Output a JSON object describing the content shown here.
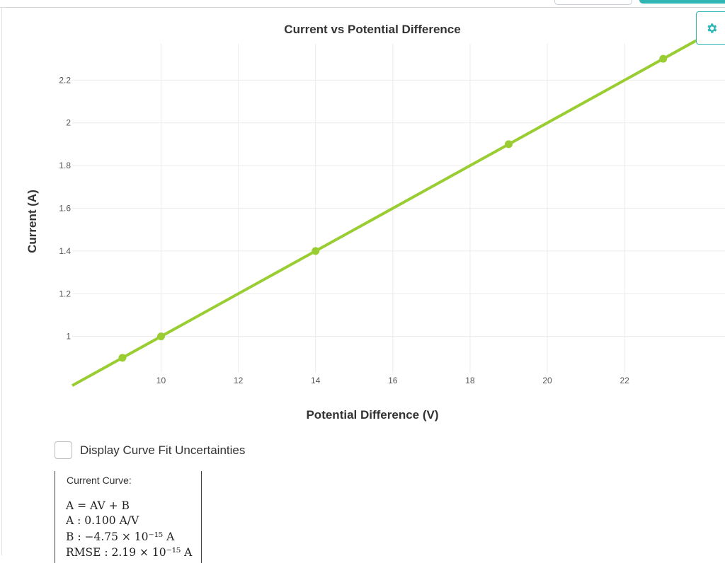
{
  "header": {
    "gear_icon": "gear-icon"
  },
  "chart_data": {
    "type": "line",
    "title": "Current vs Potential Difference",
    "xlabel": "Potential Difference (V)",
    "ylabel": "Current (A)",
    "xlim": [
      7.7,
      24.6
    ],
    "ylim": [
      0.83,
      2.37
    ],
    "x_ticks": [
      10,
      12,
      14,
      16,
      18,
      20,
      22
    ],
    "y_ticks": [
      1,
      1.2,
      1.4,
      1.6,
      1.8,
      2,
      2.2
    ],
    "x_tick_labels": [
      "10",
      "12",
      "14",
      "16",
      "18",
      "20",
      "22"
    ],
    "y_tick_labels": [
      "1",
      "1.2",
      "1.4",
      "1.6",
      "1.8",
      "2",
      "2.2"
    ],
    "grid": true,
    "series": [
      {
        "points": [
          {
            "x": 9,
            "y": 0.9
          },
          {
            "x": 10,
            "y": 1.0
          },
          {
            "x": 14,
            "y": 1.4
          },
          {
            "x": 19,
            "y": 1.9
          },
          {
            "x": 23,
            "y": 2.3
          }
        ],
        "fit_line": {
          "slope": 0.1,
          "intercept": 0
        },
        "color": "#9acd32"
      }
    ]
  },
  "controls": {
    "uncertainty_label": "Display Curve Fit Uncertainties",
    "uncertainty_checked": false
  },
  "fit": {
    "heading": "Current Curve:",
    "equation": "A = AV + B",
    "param_a": "A : 0.100 A/V",
    "param_b": "B : −4.75 × 10⁻¹⁵ A",
    "rmse": "RMSE : 2.19 × 10⁻¹⁵ A"
  }
}
